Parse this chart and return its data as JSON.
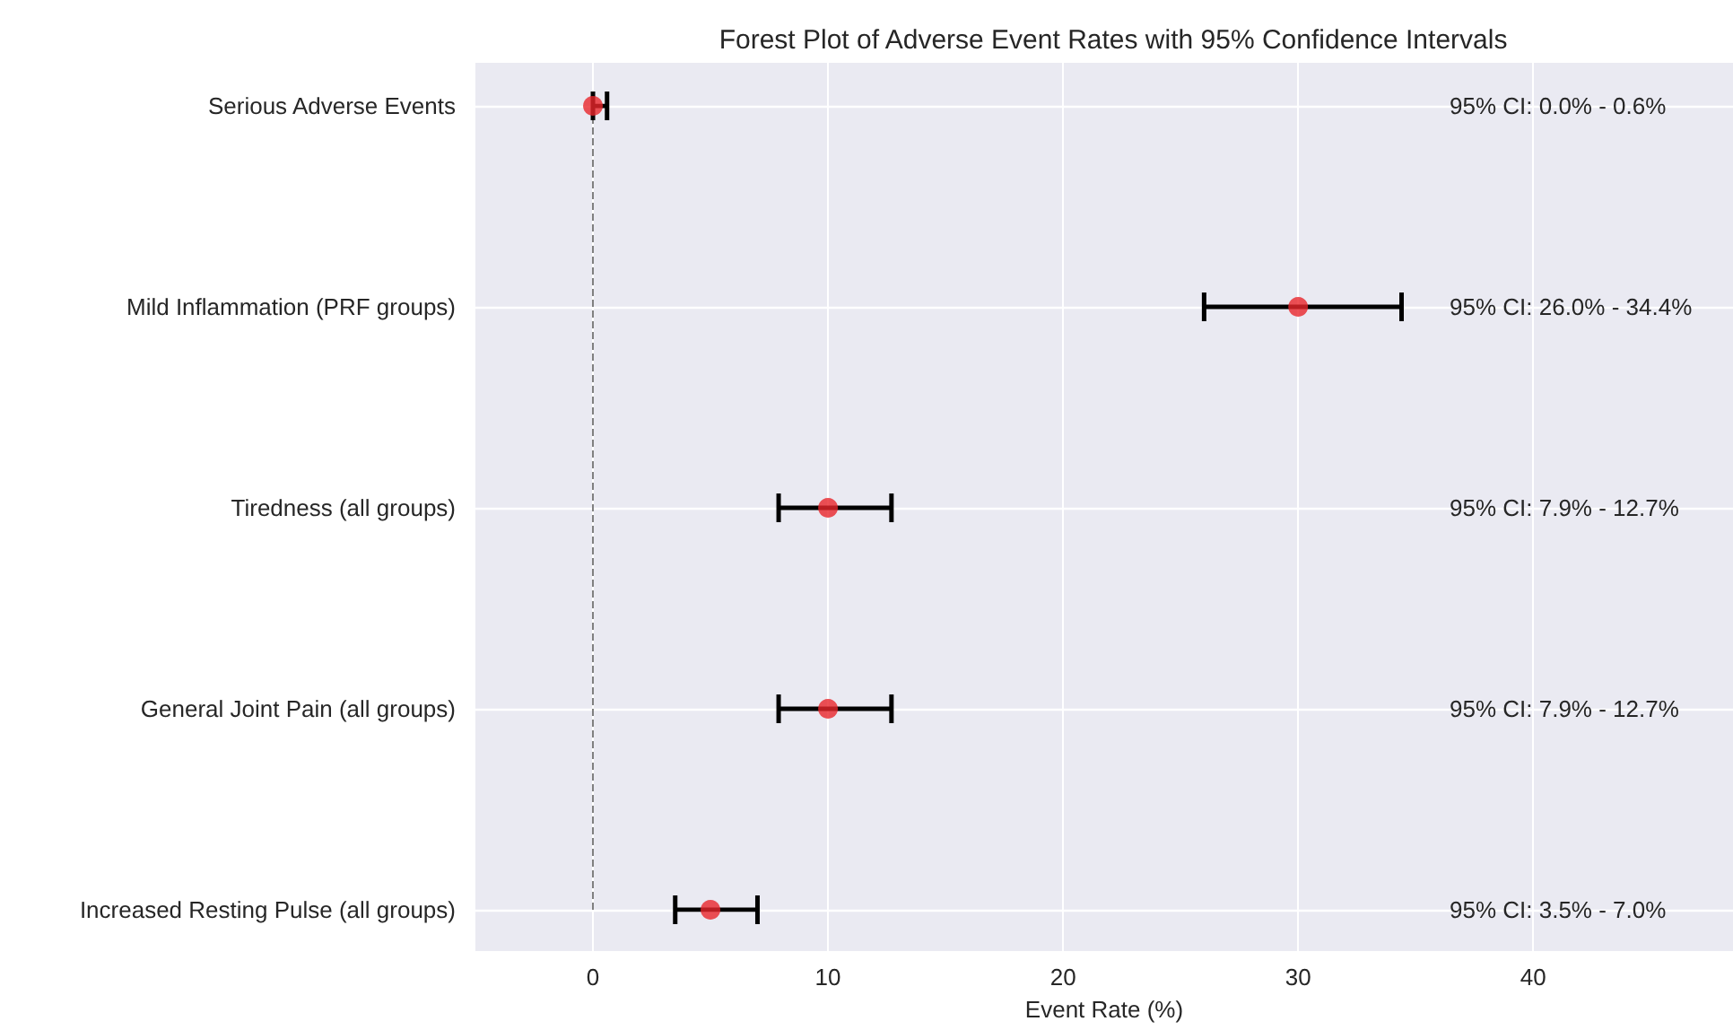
{
  "chart_data": {
    "type": "scatter",
    "title": "Forest Plot of Adverse Event Rates with 95% Confidence Intervals",
    "xlabel": "Event Rate (%)",
    "orientation": "horizontal",
    "categories": [
      "Serious Adverse Events",
      "Mild Inflammation (PRF groups)",
      "Tiredness (all groups)",
      "General Joint Pain (all groups)",
      "Increased Resting Pulse (all groups)"
    ],
    "values": [
      0,
      30,
      10,
      10,
      5
    ],
    "errors": [
      [
        0,
        0.6
      ],
      [
        26,
        34.4
      ],
      [
        7.9,
        12.7
      ],
      [
        7.9,
        12.7
      ],
      [
        3.5,
        7.0
      ]
    ],
    "color": "#e8262a",
    "marker": "circle",
    "xlim": [
      -5,
      48.5
    ],
    "xticks": [
      0,
      10,
      20,
      30,
      40
    ],
    "grid": true,
    "ref_lines": [
      {
        "axis": "x",
        "value": 0,
        "color": "#808080",
        "line_style": "dashed"
      }
    ],
    "annotations": [
      "95% CI: 0.0% - 0.6%",
      "95% CI: 26.0% - 34.4%",
      "95% CI: 7.9% - 12.7%",
      "95% CI: 7.9% - 12.7%",
      "95% CI: 3.5% - 7.0%"
    ]
  }
}
